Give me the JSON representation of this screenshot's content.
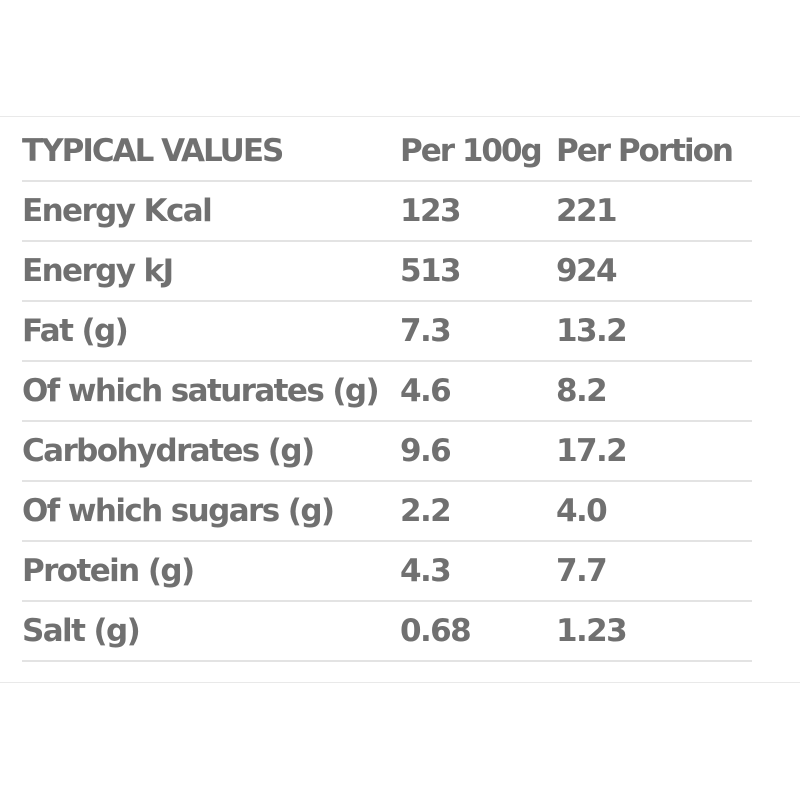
{
  "table": {
    "headers": [
      "TYPICAL VALUES",
      "Per 100g",
      "Per Portion"
    ],
    "rows": [
      [
        "Energy Kcal",
        "123",
        "221"
      ],
      [
        "Energy kJ",
        "513",
        "924"
      ],
      [
        "Fat (g)",
        "7.3",
        "13.2"
      ],
      [
        "Of which saturates (g)",
        "4.6",
        "8.2"
      ],
      [
        "Carbohydrates (g)",
        "9.6",
        "17.2"
      ],
      [
        "Of which sugars (g)",
        "2.2",
        "4.0"
      ],
      [
        "Protein (g)",
        "4.3",
        "7.7"
      ],
      [
        "Salt (g)",
        "0.68",
        "1.23"
      ]
    ]
  },
  "colors": {
    "text": "#707070",
    "row_divider": "#e3e3e3",
    "panel_border": "#e9e9e9",
    "background": "#ffffff"
  }
}
